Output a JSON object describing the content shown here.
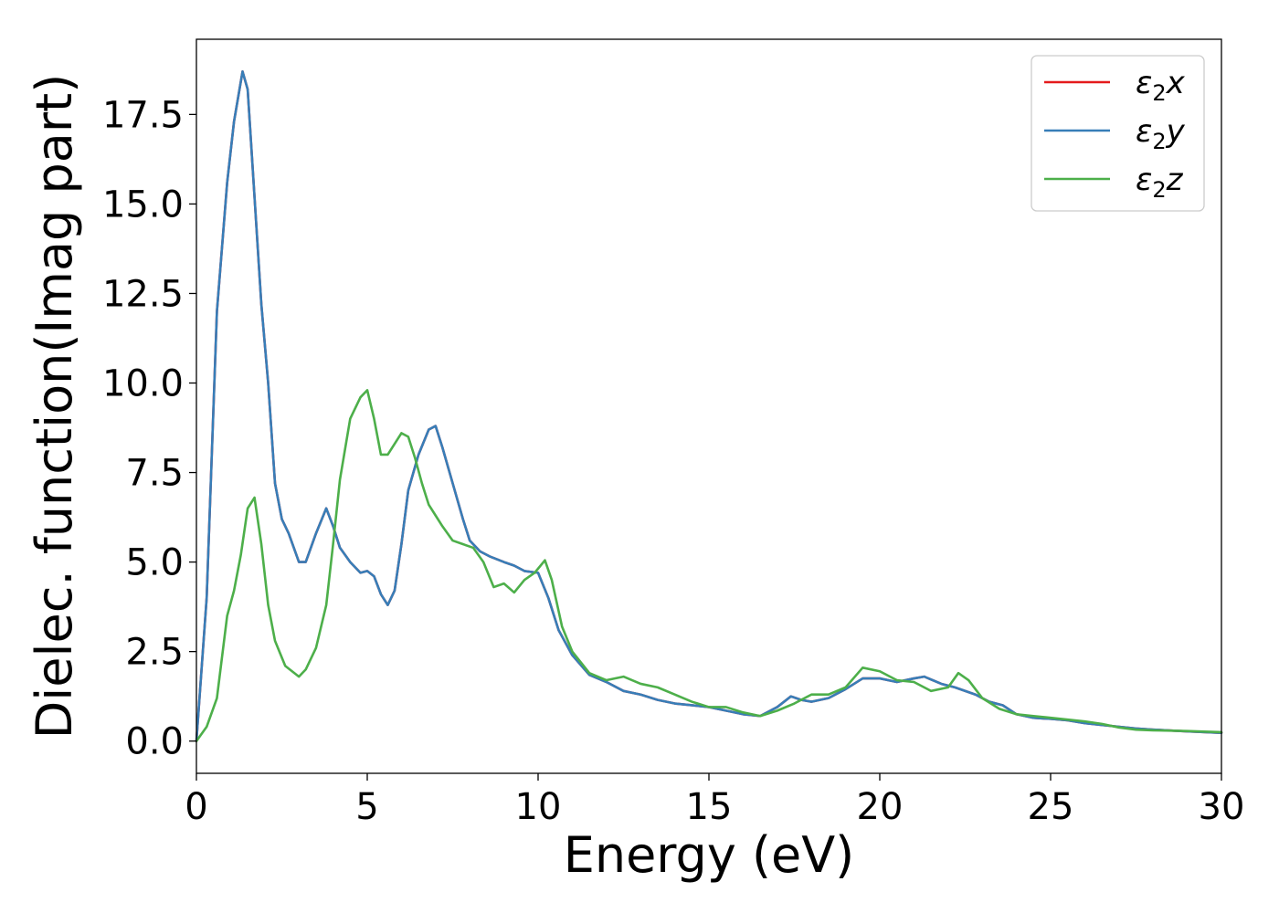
{
  "chart_data": {
    "type": "line",
    "xlabel": "Energy (eV)",
    "ylabel": "Dielec. function(Imag part)",
    "xlim": [
      0,
      30
    ],
    "ylim": [
      -0.9,
      19.6
    ],
    "xticks": [
      0,
      5,
      10,
      15,
      20,
      25,
      30
    ],
    "xtick_labels": [
      "0",
      "5",
      "10",
      "15",
      "20",
      "25",
      "30"
    ],
    "yticks": [
      0,
      2.5,
      5,
      7.5,
      10,
      12.5,
      15,
      17.5
    ],
    "ytick_labels": [
      "0.0",
      "2.5",
      "5.0",
      "7.5",
      "10.0",
      "12.5",
      "15.0",
      "17.5"
    ],
    "grid": false,
    "legend_position": "top-right",
    "series": [
      {
        "name": "ε2x",
        "legend_base": "ε",
        "legend_sub": "2",
        "legend_var": "x",
        "color": "#e41a1c",
        "x": [
          0,
          0.3,
          0.6,
          0.9,
          1.1,
          1.35,
          1.5,
          1.7,
          1.9,
          2.1,
          2.3,
          2.5,
          2.7,
          3.0,
          3.2,
          3.5,
          3.8,
          4.0,
          4.2,
          4.5,
          4.8,
          5.0,
          5.2,
          5.4,
          5.6,
          5.8,
          6.0,
          6.2,
          6.5,
          6.8,
          7.0,
          7.2,
          7.5,
          7.8,
          8.0,
          8.3,
          8.6,
          9.0,
          9.3,
          9.6,
          10.0,
          10.3,
          10.6,
          11.0,
          11.5,
          12.0,
          12.5,
          13.0,
          13.5,
          14.0,
          14.5,
          15.0,
          15.5,
          16.0,
          16.5,
          17.0,
          17.4,
          17.7,
          18.0,
          18.5,
          19.0,
          19.5,
          20.0,
          20.5,
          21.0,
          21.3,
          21.8,
          22.2,
          22.8,
          23.2,
          23.6,
          24.0,
          24.5,
          25.0,
          25.5,
          26.0,
          26.5,
          27.0,
          27.5,
          28.0,
          29.0,
          30.0
        ],
        "y": [
          0.0,
          4.0,
          12.0,
          15.6,
          17.3,
          18.7,
          18.2,
          15.2,
          12.2,
          10.0,
          7.2,
          6.2,
          5.8,
          5.0,
          5.0,
          5.8,
          6.5,
          6.0,
          5.4,
          5.0,
          4.7,
          4.75,
          4.6,
          4.1,
          3.8,
          4.2,
          5.5,
          7.0,
          8.0,
          8.7,
          8.8,
          8.2,
          7.2,
          6.2,
          5.6,
          5.3,
          5.15,
          5.0,
          4.9,
          4.75,
          4.7,
          4.0,
          3.1,
          2.4,
          1.85,
          1.65,
          1.4,
          1.3,
          1.15,
          1.05,
          1.0,
          0.95,
          0.85,
          0.75,
          0.7,
          0.95,
          1.25,
          1.15,
          1.1,
          1.2,
          1.45,
          1.75,
          1.75,
          1.65,
          1.75,
          1.8,
          1.6,
          1.5,
          1.3,
          1.1,
          1.0,
          0.75,
          0.65,
          0.62,
          0.58,
          0.5,
          0.45,
          0.4,
          0.35,
          0.32,
          0.27,
          0.23
        ]
      },
      {
        "name": "ε2y",
        "legend_base": "ε",
        "legend_sub": "2",
        "legend_var": "y",
        "color": "#377eb8",
        "x": [
          0,
          0.3,
          0.6,
          0.9,
          1.1,
          1.35,
          1.5,
          1.7,
          1.9,
          2.1,
          2.3,
          2.5,
          2.7,
          3.0,
          3.2,
          3.5,
          3.8,
          4.0,
          4.2,
          4.5,
          4.8,
          5.0,
          5.2,
          5.4,
          5.6,
          5.8,
          6.0,
          6.2,
          6.5,
          6.8,
          7.0,
          7.2,
          7.5,
          7.8,
          8.0,
          8.3,
          8.6,
          9.0,
          9.3,
          9.6,
          10.0,
          10.3,
          10.6,
          11.0,
          11.5,
          12.0,
          12.5,
          13.0,
          13.5,
          14.0,
          14.5,
          15.0,
          15.5,
          16.0,
          16.5,
          17.0,
          17.4,
          17.7,
          18.0,
          18.5,
          19.0,
          19.5,
          20.0,
          20.5,
          21.0,
          21.3,
          21.8,
          22.2,
          22.8,
          23.2,
          23.6,
          24.0,
          24.5,
          25.0,
          25.5,
          26.0,
          26.5,
          27.0,
          27.5,
          28.0,
          29.0,
          30.0
        ],
        "y": [
          0.0,
          4.0,
          12.0,
          15.6,
          17.3,
          18.7,
          18.2,
          15.2,
          12.2,
          10.0,
          7.2,
          6.2,
          5.8,
          5.0,
          5.0,
          5.8,
          6.5,
          6.0,
          5.4,
          5.0,
          4.7,
          4.75,
          4.6,
          4.1,
          3.8,
          4.2,
          5.5,
          7.0,
          8.0,
          8.7,
          8.8,
          8.2,
          7.2,
          6.2,
          5.6,
          5.3,
          5.15,
          5.0,
          4.9,
          4.75,
          4.7,
          4.0,
          3.1,
          2.4,
          1.85,
          1.65,
          1.4,
          1.3,
          1.15,
          1.05,
          1.0,
          0.95,
          0.85,
          0.75,
          0.7,
          0.95,
          1.25,
          1.15,
          1.1,
          1.2,
          1.45,
          1.75,
          1.75,
          1.65,
          1.75,
          1.8,
          1.6,
          1.5,
          1.3,
          1.1,
          1.0,
          0.75,
          0.65,
          0.62,
          0.58,
          0.5,
          0.45,
          0.4,
          0.35,
          0.32,
          0.27,
          0.23
        ]
      },
      {
        "name": "ε2z",
        "legend_base": "ε",
        "legend_sub": "2",
        "legend_var": "z",
        "color": "#4daf4a",
        "x": [
          0,
          0.3,
          0.6,
          0.9,
          1.1,
          1.3,
          1.5,
          1.7,
          1.9,
          2.1,
          2.3,
          2.6,
          3.0,
          3.2,
          3.5,
          3.8,
          4.0,
          4.2,
          4.5,
          4.8,
          5.0,
          5.2,
          5.4,
          5.6,
          5.8,
          6.0,
          6.2,
          6.4,
          6.6,
          6.8,
          7.0,
          7.2,
          7.5,
          7.8,
          8.1,
          8.4,
          8.7,
          9.0,
          9.3,
          9.6,
          9.9,
          10.2,
          10.4,
          10.7,
          11.0,
          11.5,
          12.0,
          12.5,
          13.0,
          13.5,
          14.0,
          14.5,
          15.0,
          15.5,
          16.0,
          16.5,
          17.0,
          17.5,
          18.0,
          18.5,
          19.0,
          19.5,
          20.0,
          20.5,
          21.0,
          21.5,
          22.0,
          22.3,
          22.6,
          23.0,
          23.5,
          24.0,
          24.5,
          25.0,
          25.5,
          26.0,
          26.5,
          27.0,
          27.5,
          28.0,
          29.0,
          30.0
        ],
        "y": [
          0.0,
          0.4,
          1.2,
          3.5,
          4.2,
          5.2,
          6.5,
          6.8,
          5.5,
          3.8,
          2.8,
          2.1,
          1.8,
          2.0,
          2.6,
          3.8,
          5.5,
          7.3,
          9.0,
          9.6,
          9.8,
          9.0,
          8.0,
          8.0,
          8.3,
          8.6,
          8.5,
          7.9,
          7.2,
          6.6,
          6.3,
          6.0,
          5.6,
          5.5,
          5.4,
          5.0,
          4.3,
          4.4,
          4.15,
          4.5,
          4.7,
          5.05,
          4.5,
          3.2,
          2.5,
          1.9,
          1.7,
          1.8,
          1.6,
          1.5,
          1.3,
          1.1,
          0.95,
          0.95,
          0.8,
          0.7,
          0.85,
          1.05,
          1.3,
          1.3,
          1.5,
          2.05,
          1.95,
          1.7,
          1.65,
          1.4,
          1.5,
          1.9,
          1.7,
          1.2,
          0.9,
          0.75,
          0.7,
          0.65,
          0.6,
          0.55,
          0.48,
          0.38,
          0.32,
          0.3,
          0.28,
          0.25
        ]
      }
    ]
  }
}
